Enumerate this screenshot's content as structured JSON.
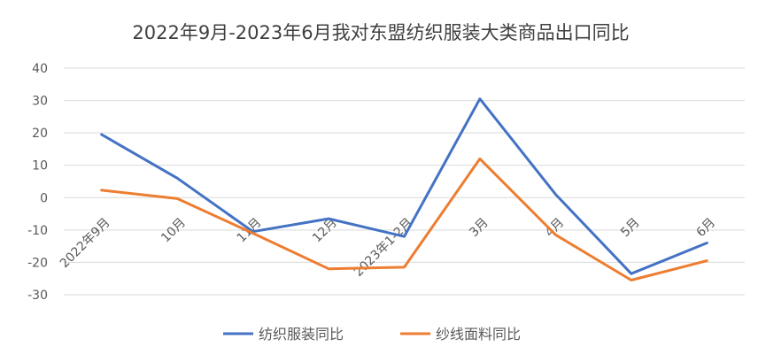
{
  "chart_data": {
    "type": "line",
    "title": "2022年9月-2023年6月我对东盟纺织服装大类商品出口同比",
    "categories": [
      "2022年9月",
      "10月",
      "11月",
      "12月",
      "2023年1-2月",
      "3月",
      "4月",
      "5月",
      "6月"
    ],
    "series": [
      {
        "name": "纺织服装同比",
        "color": "#4472C4",
        "values": [
          19.5,
          6.0,
          -10.5,
          -6.5,
          -12.0,
          30.5,
          1.0,
          -23.5,
          -14.0
        ]
      },
      {
        "name": "纱线面料同比",
        "color": "#ED7D31",
        "values": [
          2.3,
          -0.3,
          -11.0,
          -22.0,
          -21.5,
          12.0,
          -11.5,
          -25.5,
          -19.5
        ]
      }
    ],
    "ylim": [
      -30,
      40
    ],
    "yticks": [
      40,
      30,
      20,
      10,
      0,
      -10,
      -20,
      -30
    ],
    "xlabel": "",
    "ylabel": "",
    "grid": true,
    "legend_position": "bottom"
  }
}
